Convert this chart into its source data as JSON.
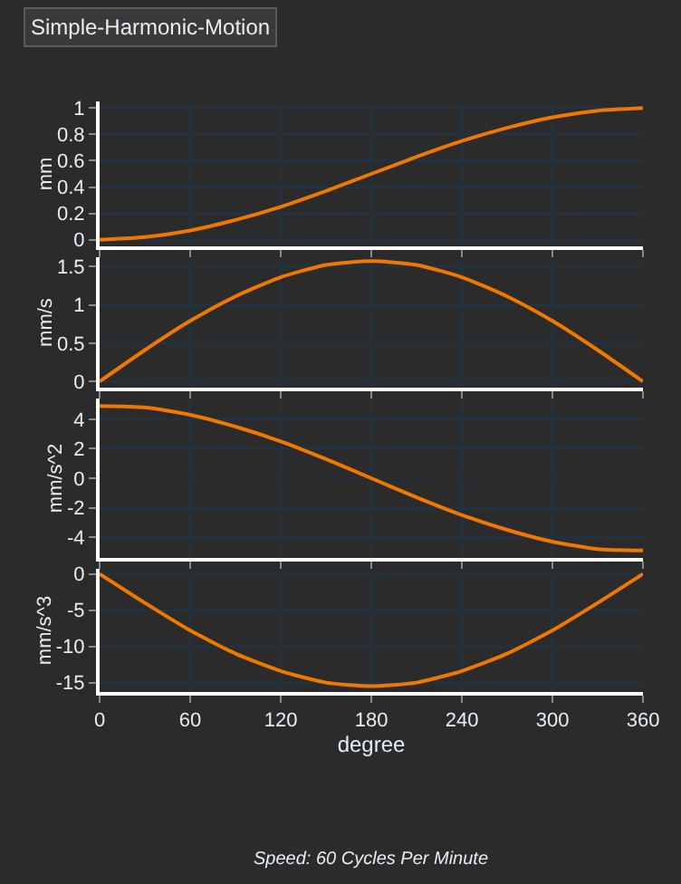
{
  "chart_data": [
    {
      "type": "line",
      "title": "Simple-Harmonic-Motion",
      "ylabel": "mm",
      "x": [
        0,
        30,
        60,
        90,
        120,
        150,
        180,
        210,
        240,
        270,
        300,
        330,
        360
      ],
      "series": [
        {
          "color": "#f07800",
          "values": [
            0,
            0.02,
            0.07,
            0.15,
            0.25,
            0.37,
            0.5,
            0.63,
            0.75,
            0.85,
            0.93,
            0.98,
            1
          ]
        }
      ],
      "xlim": [
        0,
        360
      ],
      "xticks": [
        {
          "value": 0,
          "label": null
        },
        {
          "value": 60,
          "label": null
        },
        {
          "value": 120,
          "label": null
        },
        {
          "value": 180,
          "label": null
        },
        {
          "value": 240,
          "label": null
        },
        {
          "value": 300,
          "label": null
        },
        {
          "value": 360,
          "label": null
        }
      ],
      "ylim": [
        -0.05,
        1.05
      ],
      "yticks": [
        0,
        0.2,
        0.4,
        0.6,
        0.8,
        1
      ],
      "tick_labels": "y",
      "grid": true,
      "marker": "none",
      "line_style": "solid"
    },
    {
      "type": "line",
      "ylabel": "mm/s",
      "x": [
        0,
        30,
        60,
        90,
        120,
        150,
        180,
        210,
        240,
        270,
        300,
        330,
        360
      ],
      "series": [
        {
          "color": "#f07800",
          "values": [
            0,
            0.41,
            0.79,
            1.11,
            1.36,
            1.52,
            1.57,
            1.52,
            1.36,
            1.11,
            0.79,
            0.41,
            0
          ]
        }
      ],
      "xlim": [
        0,
        360
      ],
      "xticks": [
        {
          "value": 0,
          "label": null
        },
        {
          "value": 60,
          "label": null
        },
        {
          "value": 120,
          "label": null
        },
        {
          "value": 180,
          "label": null
        },
        {
          "value": 240,
          "label": null
        },
        {
          "value": 300,
          "label": null
        },
        {
          "value": 360,
          "label": null
        }
      ],
      "ylim": [
        -0.08,
        1.62
      ],
      "yticks": [
        0,
        0.5,
        1,
        1.5
      ],
      "tick_labels": "y",
      "grid": true,
      "marker": "none",
      "line_style": "solid"
    },
    {
      "type": "line",
      "ylabel": "mm/s^2",
      "x": [
        0,
        30,
        60,
        90,
        120,
        150,
        180,
        210,
        240,
        270,
        300,
        330,
        360
      ],
      "series": [
        {
          "color": "#f07800",
          "values": [
            4.9,
            4.8,
            4.3,
            3.5,
            2.5,
            1.3,
            0,
            -1.3,
            -2.5,
            -3.5,
            -4.3,
            -4.8,
            -4.9
          ]
        }
      ],
      "xlim": [
        0,
        360
      ],
      "xticks": [
        {
          "value": 0,
          "label": null
        },
        {
          "value": 60,
          "label": null
        },
        {
          "value": 120,
          "label": null
        },
        {
          "value": 180,
          "label": null
        },
        {
          "value": 240,
          "label": null
        },
        {
          "value": 300,
          "label": null
        },
        {
          "value": 360,
          "label": null
        }
      ],
      "ylim": [
        -5.4,
        5.4
      ],
      "yticks": [
        -4,
        -2,
        0,
        2,
        4
      ],
      "tick_labels": "y",
      "grid": true,
      "marker": "none",
      "line_style": "solid"
    },
    {
      "type": "line",
      "xlabel": "degree",
      "ylabel": "mm/s^3",
      "x": [
        0,
        30,
        60,
        90,
        120,
        150,
        180,
        210,
        240,
        270,
        300,
        330,
        360
      ],
      "series": [
        {
          "color": "#f07800",
          "values": [
            0,
            -4,
            -7.8,
            -11,
            -13.4,
            -15,
            -15.5,
            -15,
            -13.4,
            -11,
            -7.8,
            -4,
            0
          ]
        }
      ],
      "xlim": [
        0,
        360
      ],
      "xticks": [
        0,
        60,
        120,
        180,
        240,
        300,
        360
      ],
      "ylim": [
        -16.3,
        0.7
      ],
      "yticks": [
        -15,
        -10,
        -5,
        0
      ],
      "grid": true,
      "marker": "none",
      "line_style": "solid",
      "annotations": [
        "Speed: 60 Cycles Per Minute"
      ]
    }
  ]
}
